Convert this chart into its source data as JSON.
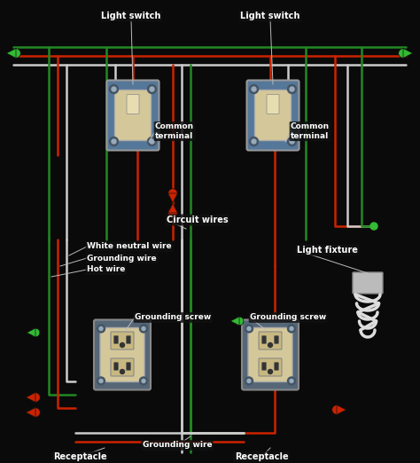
{
  "bg_color": "#0a0a0a",
  "wire_colors": {
    "red": "#cc2200",
    "white": "#cccccc",
    "green": "#228822"
  },
  "labels": {
    "light_switch_1": "Light switch",
    "light_switch_2": "Light switch",
    "common_terminal_1": "Common\nterminal",
    "common_terminal_2": "Common\nterminal",
    "circuit_wires": "Circuit wires",
    "white_neutral": "White neutral wire",
    "grounding_wire": "Grounding wire",
    "hot_wire": "Hot wire",
    "light_fixture": "Light fixture",
    "grounding_screw_1": "Grounding screw",
    "grounding_screw_2": "Grounding screw",
    "grounding_wire_bottom": "Grounding wire",
    "receptacle_1": "Receptacle",
    "receptacle_2": "Receptacle"
  },
  "label_color": "#ffffff",
  "switch_face": "#d4c89a",
  "switch_plate": "#557799",
  "outlet_face": "#d4c89a",
  "outlet_plate": "#556677",
  "connector_green": "#33bb33",
  "connector_red": "#cc2200"
}
